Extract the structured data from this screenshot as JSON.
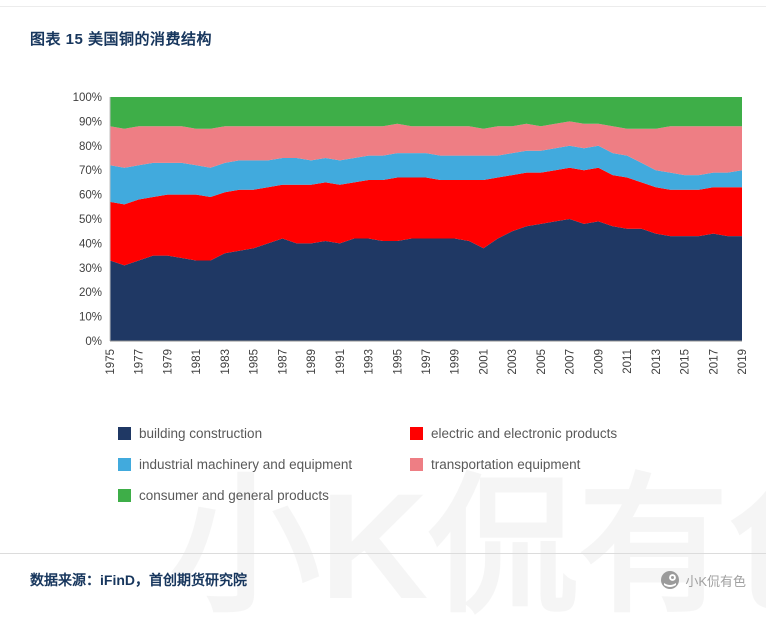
{
  "page": {
    "title": "图表 15 美国铜的消费结构",
    "footer_source": "数据来源：iFinD，首创期货研究院",
    "watermark_text": "小K侃有色"
  },
  "colors": {
    "accent_navy": "#17365d",
    "legend_text": "#595959",
    "axis_text": "#404040"
  },
  "chart_data": {
    "type": "area",
    "stacked": true,
    "percent_stacked": true,
    "title": "图表 15 美国铜的消费结构",
    "xlabel": "",
    "ylabel": "",
    "ylim": [
      0,
      100
    ],
    "grid": false,
    "legend_position": "bottom",
    "x_tick_every": 2,
    "y_ticks": [
      "0%",
      "10%",
      "20%",
      "30%",
      "40%",
      "50%",
      "60%",
      "70%",
      "80%",
      "90%",
      "100%"
    ],
    "x": [
      1975,
      1976,
      1977,
      1978,
      1979,
      1980,
      1981,
      1982,
      1983,
      1984,
      1985,
      1986,
      1987,
      1988,
      1989,
      1990,
      1991,
      1992,
      1993,
      1994,
      1995,
      1996,
      1997,
      1998,
      1999,
      2000,
      2001,
      2002,
      2003,
      2004,
      2005,
      2006,
      2007,
      2008,
      2009,
      2010,
      2011,
      2012,
      2013,
      2014,
      2015,
      2016,
      2017,
      2018,
      2019
    ],
    "series": [
      {
        "name": "building construction",
        "color": "#1f3864",
        "values": [
          33,
          31,
          33,
          35,
          35,
          34,
          33,
          33,
          36,
          37,
          38,
          40,
          42,
          40,
          40,
          41,
          40,
          42,
          42,
          41,
          41,
          42,
          42,
          42,
          42,
          41,
          38,
          42,
          45,
          47,
          48,
          49,
          50,
          48,
          49,
          47,
          46,
          46,
          44,
          43,
          43,
          43,
          44,
          43,
          43
        ]
      },
      {
        "name": "electric and electronic products",
        "color": "#ff0000",
        "values": [
          24,
          25,
          25,
          24,
          25,
          26,
          27,
          26,
          25,
          25,
          24,
          23,
          22,
          24,
          24,
          24,
          24,
          23,
          24,
          25,
          26,
          25,
          25,
          24,
          24,
          25,
          28,
          25,
          23,
          22,
          21,
          21,
          21,
          22,
          22,
          21,
          21,
          19,
          19,
          19,
          19,
          19,
          19,
          20,
          20
        ]
      },
      {
        "name": "industrial machinery and equipment",
        "color": "#41aadd",
        "values": [
          15,
          15,
          14,
          14,
          13,
          13,
          12,
          12,
          12,
          12,
          12,
          11,
          11,
          11,
          10,
          10,
          10,
          10,
          10,
          10,
          10,
          10,
          10,
          10,
          10,
          10,
          10,
          9,
          9,
          9,
          9,
          9,
          9,
          9,
          9,
          9,
          9,
          8,
          7,
          7,
          6,
          6,
          6,
          6,
          7
        ]
      },
      {
        "name": "transportation equipment",
        "color": "#ee7e84",
        "values": [
          16,
          16,
          16,
          15,
          15,
          15,
          15,
          16,
          15,
          14,
          14,
          14,
          13,
          13,
          14,
          13,
          14,
          13,
          12,
          12,
          12,
          11,
          11,
          12,
          12,
          12,
          11,
          12,
          11,
          11,
          10,
          10,
          10,
          10,
          9,
          11,
          11,
          14,
          17,
          19,
          20,
          20,
          19,
          19,
          18
        ]
      },
      {
        "name": "consumer and general products",
        "color": "#3eae48",
        "values": [
          12,
          13,
          12,
          12,
          12,
          12,
          13,
          13,
          12,
          12,
          12,
          12,
          12,
          12,
          12,
          12,
          12,
          12,
          12,
          12,
          11,
          12,
          12,
          12,
          12,
          12,
          13,
          12,
          12,
          11,
          12,
          11,
          10,
          11,
          11,
          12,
          13,
          13,
          13,
          12,
          12,
          12,
          12,
          12,
          12
        ]
      }
    ]
  }
}
